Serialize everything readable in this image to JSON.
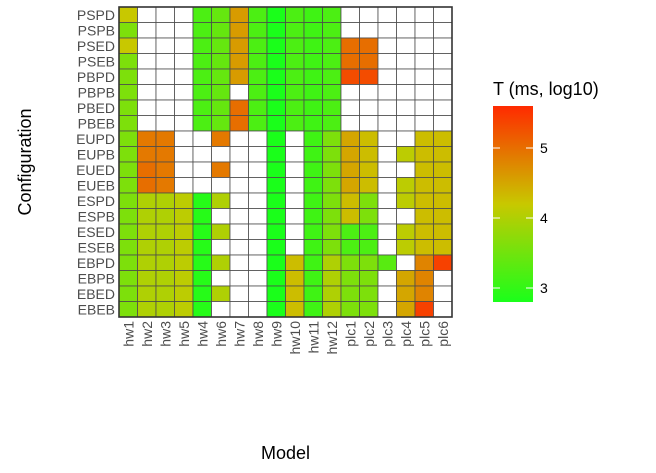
{
  "chart_data": {
    "type": "heatmap",
    "xlabel": "Model",
    "ylabel": "Configuration",
    "x_categories": [
      "hw1",
      "hw2",
      "hw3",
      "hw5",
      "hw4",
      "hw6",
      "hw7",
      "hw8",
      "hw9",
      "hw10",
      "hw11",
      "hw12",
      "plc1",
      "plc2",
      "plc3",
      "plc4",
      "plc5",
      "plc6"
    ],
    "y_categories": [
      "PSPD",
      "PSPB",
      "PSED",
      "PSEB",
      "PBPD",
      "PBPB",
      "PBED",
      "PBEB",
      "EUPD",
      "EUPB",
      "EUED",
      "EUEB",
      "ESPD",
      "ESPB",
      "ESED",
      "ESEB",
      "EBPD",
      "EBPB",
      "EBED",
      "EBEB"
    ],
    "values": [
      [
        4.2,
        null,
        null,
        null,
        3.2,
        3.4,
        4.6,
        3.2,
        2.8,
        3.2,
        3.1,
        3.2,
        null,
        null,
        null,
        null,
        null,
        null
      ],
      [
        3.6,
        null,
        null,
        null,
        3.2,
        3.4,
        4.6,
        3.2,
        2.8,
        3.2,
        3.1,
        3.2,
        null,
        null,
        null,
        null,
        null,
        null
      ],
      [
        4.2,
        null,
        null,
        null,
        3.2,
        3.4,
        4.6,
        3.2,
        2.8,
        3.2,
        3.1,
        3.2,
        5.0,
        5.0,
        null,
        null,
        null,
        null
      ],
      [
        3.6,
        null,
        null,
        null,
        3.2,
        3.4,
        4.6,
        3.2,
        2.8,
        3.2,
        3.1,
        3.2,
        5.0,
        5.0,
        null,
        null,
        null,
        null
      ],
      [
        3.6,
        null,
        null,
        null,
        3.2,
        3.4,
        4.6,
        3.2,
        2.8,
        3.2,
        3.1,
        3.2,
        5.3,
        5.3,
        null,
        null,
        null,
        null
      ],
      [
        3.6,
        null,
        null,
        null,
        3.2,
        3.4,
        null,
        3.2,
        2.8,
        3.2,
        3.1,
        3.2,
        null,
        null,
        null,
        null,
        null,
        null
      ],
      [
        3.6,
        null,
        null,
        null,
        3.2,
        3.4,
        5.0,
        3.2,
        2.8,
        3.2,
        3.1,
        3.2,
        null,
        null,
        null,
        null,
        null,
        null
      ],
      [
        3.6,
        null,
        null,
        null,
        3.2,
        3.4,
        5.0,
        3.2,
        2.8,
        3.2,
        3.1,
        3.2,
        null,
        null,
        null,
        null,
        null,
        null
      ],
      [
        3.6,
        4.9,
        4.9,
        null,
        null,
        4.9,
        null,
        null,
        2.8,
        null,
        3.1,
        3.6,
        4.5,
        4.3,
        null,
        null,
        4.3,
        4.3
      ],
      [
        3.6,
        4.9,
        4.9,
        null,
        null,
        null,
        null,
        null,
        2.8,
        null,
        3.1,
        3.6,
        4.5,
        4.3,
        null,
        4.1,
        4.3,
        4.3
      ],
      [
        3.6,
        5.0,
        4.9,
        null,
        null,
        4.9,
        null,
        null,
        2.8,
        null,
        3.1,
        3.6,
        4.5,
        4.3,
        null,
        null,
        4.3,
        4.3
      ],
      [
        3.6,
        5.0,
        4.9,
        null,
        null,
        null,
        null,
        null,
        2.8,
        null,
        3.1,
        3.6,
        4.5,
        4.3,
        null,
        4.1,
        4.3,
        4.3
      ],
      [
        3.6,
        4.0,
        4.0,
        4.1,
        2.9,
        4.0,
        null,
        null,
        2.8,
        null,
        3.1,
        3.6,
        4.3,
        3.6,
        null,
        4.1,
        4.3,
        4.3
      ],
      [
        3.6,
        4.0,
        4.0,
        4.1,
        2.9,
        null,
        null,
        null,
        2.8,
        null,
        3.1,
        3.6,
        4.3,
        3.6,
        null,
        null,
        4.3,
        4.3
      ],
      [
        3.6,
        4.0,
        4.0,
        4.1,
        2.9,
        4.0,
        null,
        null,
        2.8,
        null,
        3.1,
        3.6,
        3.2,
        3.2,
        null,
        4.1,
        4.3,
        4.3
      ],
      [
        3.6,
        4.0,
        4.0,
        4.1,
        2.9,
        null,
        null,
        null,
        2.8,
        null,
        3.1,
        3.6,
        3.2,
        3.2,
        null,
        4.1,
        4.3,
        4.3
      ],
      [
        3.6,
        4.0,
        4.0,
        4.1,
        2.9,
        4.0,
        null,
        null,
        2.8,
        4.3,
        3.1,
        4.0,
        3.6,
        3.6,
        3.3,
        null,
        4.8,
        5.4
      ],
      [
        3.6,
        4.0,
        4.0,
        4.1,
        2.9,
        null,
        null,
        null,
        2.8,
        4.3,
        3.1,
        4.0,
        3.6,
        3.6,
        null,
        4.5,
        4.8,
        null
      ],
      [
        3.6,
        4.0,
        4.0,
        4.1,
        2.9,
        4.0,
        null,
        null,
        2.8,
        4.3,
        3.1,
        4.0,
        3.6,
        3.6,
        null,
        4.5,
        4.8,
        null
      ],
      [
        3.6,
        4.0,
        4.0,
        4.1,
        2.9,
        null,
        null,
        null,
        2.8,
        4.3,
        3.1,
        4.0,
        3.6,
        3.6,
        null,
        4.5,
        5.4,
        null
      ]
    ],
    "legend": {
      "title": "T (ms, log10)",
      "placement": "right",
      "range": [
        2.8,
        5.6
      ],
      "ticks": [
        "3",
        "4",
        "5"
      ],
      "tick_values": [
        3,
        4,
        5
      ]
    },
    "colors": {
      "low": "#1aff1a",
      "mid": "#c8c800",
      "high": "#ff2a00",
      "missing": "#ffffff",
      "cell_border": "#4d4d4d",
      "panel_border": "#333333"
    }
  }
}
